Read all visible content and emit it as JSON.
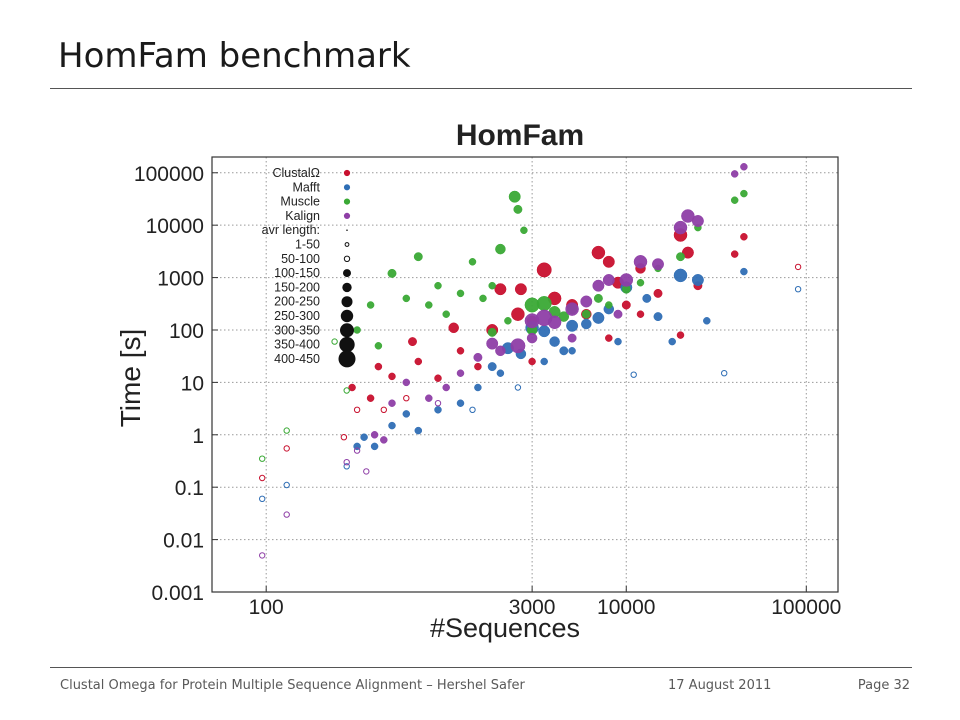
{
  "slide": {
    "title": "HomFam benchmark",
    "footer_left": "Clustal Omega for Protein Multiple Sequence Alignment – Hershel Safer",
    "footer_date": "17 August 2011",
    "footer_page": "Page 32"
  },
  "colors": {
    "ClustalΩ": "#c8102e",
    "Mafft": "#2f6eb5",
    "Muscle": "#3aa935",
    "Kalign": "#8e3ea6"
  },
  "chart_data": {
    "type": "scatter",
    "title": "HomFam",
    "xlabel": "#Sequences",
    "ylabel": "Time [s]",
    "x_scale": "log",
    "y_scale": "log",
    "xlim": [
      50,
      150000
    ],
    "ylim": [
      0.001,
      200000
    ],
    "x_ticks": [
      {
        "v": 100,
        "label": "100"
      },
      {
        "v": 3000,
        "label": "3000"
      },
      {
        "v": 10000,
        "label": "10000"
      },
      {
        "v": 100000,
        "label": "100000"
      }
    ],
    "y_ticks": [
      {
        "v": 100000,
        "label": "100000"
      },
      {
        "v": 10000,
        "label": "10000"
      },
      {
        "v": 1000,
        "label": "1000"
      },
      {
        "v": 100,
        "label": "100"
      },
      {
        "v": 10,
        "label": "10"
      },
      {
        "v": 1,
        "label": "1"
      },
      {
        "v": 0.1,
        "label": "0.1"
      },
      {
        "v": 0.01,
        "label": "0.01"
      },
      {
        "v": 0.001,
        "label": "0.001"
      }
    ],
    "grid": true,
    "legend_position": "top-left",
    "legend_methods": [
      "ClustalΩ",
      "Mafft",
      "Muscle",
      "Kalign"
    ],
    "legend_size_title": "avr length:",
    "legend_sizes": [
      {
        "label": "1-50",
        "size": 1,
        "hollow": true
      },
      {
        "label": "50-100",
        "size": 2,
        "hollow": true
      },
      {
        "label": "100-150",
        "size": 3,
        "hollow": false
      },
      {
        "label": "150-200",
        "size": 4,
        "hollow": false
      },
      {
        "label": "200-250",
        "size": 5,
        "hollow": false
      },
      {
        "label": "250-300",
        "size": 6,
        "hollow": false
      },
      {
        "label": "300-350",
        "size": 7,
        "hollow": false
      },
      {
        "label": "350-400",
        "size": 8,
        "hollow": false
      },
      {
        "label": "400-450",
        "size": 9,
        "hollow": false
      }
    ],
    "series": [
      {
        "name": "ClustalΩ",
        "points": [
          [
            95,
            0.15,
            2
          ],
          [
            130,
            0.55,
            2
          ],
          [
            270,
            0.9,
            2
          ],
          [
            300,
            8,
            3
          ],
          [
            320,
            3,
            2
          ],
          [
            380,
            5,
            3
          ],
          [
            420,
            20,
            3
          ],
          [
            450,
            3,
            2
          ],
          [
            500,
            13,
            3
          ],
          [
            600,
            5,
            2
          ],
          [
            650,
            60,
            4
          ],
          [
            700,
            25,
            3
          ],
          [
            900,
            12,
            3
          ],
          [
            1100,
            110,
            5
          ],
          [
            1200,
            40,
            3
          ],
          [
            1500,
            20,
            3
          ],
          [
            1800,
            100,
            6
          ],
          [
            2000,
            600,
            6
          ],
          [
            2500,
            200,
            7
          ],
          [
            2600,
            600,
            6
          ],
          [
            3000,
            150,
            5
          ],
          [
            3500,
            1400,
            8
          ],
          [
            4000,
            400,
            7
          ],
          [
            5000,
            300,
            6
          ],
          [
            6000,
            200,
            5
          ],
          [
            7000,
            3000,
            7
          ],
          [
            8000,
            2000,
            6
          ],
          [
            9000,
            800,
            6
          ],
          [
            10000,
            300,
            4
          ],
          [
            12000,
            1500,
            5
          ],
          [
            15000,
            500,
            4
          ],
          [
            20000,
            6500,
            7
          ],
          [
            22000,
            3000,
            6
          ],
          [
            25000,
            700,
            4
          ],
          [
            40000,
            2800,
            3
          ],
          [
            45000,
            6000,
            3
          ],
          [
            90000,
            1600,
            2
          ],
          [
            20000,
            80,
            3
          ],
          [
            8000,
            70,
            3
          ],
          [
            3000,
            25,
            3
          ],
          [
            12000,
            200,
            3
          ]
        ]
      },
      {
        "name": "Mafft",
        "points": [
          [
            95,
            0.06,
            2
          ],
          [
            130,
            0.11,
            2
          ],
          [
            280,
            0.25,
            2
          ],
          [
            320,
            0.6,
            3
          ],
          [
            350,
            0.9,
            3
          ],
          [
            400,
            0.6,
            3
          ],
          [
            500,
            1.5,
            3
          ],
          [
            600,
            2.5,
            3
          ],
          [
            700,
            1.2,
            3
          ],
          [
            900,
            3,
            3
          ],
          [
            1200,
            4,
            3
          ],
          [
            1500,
            8,
            3
          ],
          [
            1800,
            20,
            4
          ],
          [
            2200,
            45,
            6
          ],
          [
            2600,
            35,
            5
          ],
          [
            3000,
            110,
            7
          ],
          [
            3500,
            95,
            6
          ],
          [
            4000,
            60,
            5
          ],
          [
            4500,
            40,
            4
          ],
          [
            5000,
            120,
            6
          ],
          [
            6000,
            130,
            5
          ],
          [
            7000,
            170,
            6
          ],
          [
            8000,
            250,
            5
          ],
          [
            9000,
            60,
            3
          ],
          [
            10000,
            650,
            6
          ],
          [
            11000,
            14,
            2
          ],
          [
            13000,
            400,
            4
          ],
          [
            15000,
            180,
            4
          ],
          [
            18000,
            60,
            3
          ],
          [
            20000,
            1100,
            7
          ],
          [
            25000,
            900,
            6
          ],
          [
            28000,
            150,
            3
          ],
          [
            35000,
            15,
            2
          ],
          [
            45000,
            1300,
            3
          ],
          [
            90000,
            600,
            2
          ],
          [
            5000,
            40,
            3
          ],
          [
            3500,
            25,
            3
          ],
          [
            2000,
            15,
            3
          ],
          [
            2500,
            8,
            2
          ],
          [
            1400,
            3,
            2
          ]
        ]
      },
      {
        "name": "Muscle",
        "points": [
          [
            95,
            0.35,
            2
          ],
          [
            130,
            1.2,
            2
          ],
          [
            240,
            60,
            2
          ],
          [
            280,
            7,
            2
          ],
          [
            320,
            100,
            3
          ],
          [
            380,
            300,
            3
          ],
          [
            420,
            50,
            3
          ],
          [
            500,
            1200,
            4
          ],
          [
            600,
            400,
            3
          ],
          [
            700,
            2500,
            4
          ],
          [
            800,
            300,
            3
          ],
          [
            900,
            700,
            3
          ],
          [
            1000,
            200,
            3
          ],
          [
            1200,
            500,
            3
          ],
          [
            1400,
            2000,
            3
          ],
          [
            1600,
            400,
            3
          ],
          [
            1800,
            700,
            3
          ],
          [
            2000,
            3500,
            5
          ],
          [
            2400,
            35000,
            6
          ],
          [
            2500,
            20000,
            4
          ],
          [
            2700,
            8000,
            3
          ],
          [
            3000,
            300,
            8
          ],
          [
            3500,
            320,
            8
          ],
          [
            4000,
            220,
            6
          ],
          [
            4500,
            180,
            5
          ],
          [
            5000,
            250,
            5
          ],
          [
            6000,
            200,
            4
          ],
          [
            7000,
            400,
            4
          ],
          [
            8000,
            300,
            3
          ],
          [
            10000,
            600,
            4
          ],
          [
            12000,
            800,
            3
          ],
          [
            15000,
            1500,
            3
          ],
          [
            20000,
            2500,
            4
          ],
          [
            25000,
            9000,
            3
          ],
          [
            40000,
            30000,
            3
          ],
          [
            45000,
            40000,
            3
          ],
          [
            1800,
            90,
            4
          ],
          [
            2200,
            150,
            3
          ],
          [
            3000,
            100,
            5
          ]
        ]
      },
      {
        "name": "Kalign",
        "points": [
          [
            95,
            0.005,
            2
          ],
          [
            130,
            0.03,
            2
          ],
          [
            280,
            0.3,
            2
          ],
          [
            320,
            0.5,
            2
          ],
          [
            360,
            0.2,
            2
          ],
          [
            400,
            1,
            3
          ],
          [
            450,
            0.8,
            3
          ],
          [
            500,
            4,
            3
          ],
          [
            600,
            10,
            3
          ],
          [
            800,
            5,
            3
          ],
          [
            900,
            4,
            2
          ],
          [
            1000,
            8,
            3
          ],
          [
            1200,
            15,
            3
          ],
          [
            1500,
            30,
            4
          ],
          [
            1800,
            55,
            6
          ],
          [
            2000,
            40,
            5
          ],
          [
            2500,
            50,
            8
          ],
          [
            3000,
            150,
            8
          ],
          [
            3500,
            170,
            9
          ],
          [
            4000,
            140,
            7
          ],
          [
            5000,
            250,
            7
          ],
          [
            6000,
            350,
            6
          ],
          [
            7000,
            700,
            6
          ],
          [
            8000,
            900,
            6
          ],
          [
            10000,
            900,
            7
          ],
          [
            12000,
            2000,
            7
          ],
          [
            15000,
            1800,
            6
          ],
          [
            20000,
            9000,
            7
          ],
          [
            22000,
            15000,
            7
          ],
          [
            25000,
            12000,
            6
          ],
          [
            40000,
            95000,
            3
          ],
          [
            45000,
            130000,
            3
          ],
          [
            5000,
            70,
            4
          ],
          [
            3000,
            70,
            5
          ],
          [
            9000,
            200,
            4
          ]
        ]
      }
    ]
  }
}
